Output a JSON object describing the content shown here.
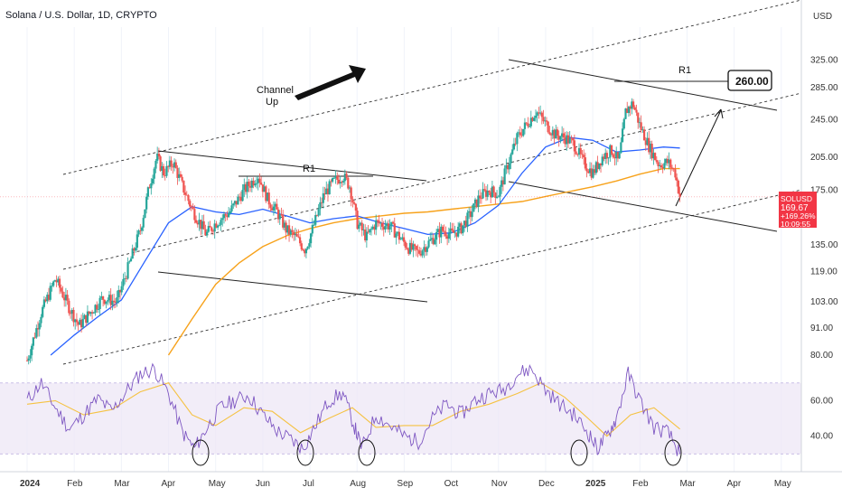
{
  "header": {
    "title": "Solana / U.S. Dollar, 1D, CRYPTO",
    "currency": "USD"
  },
  "price_tag": {
    "symbol": "SOLUSD",
    "price": "169.67",
    "change": "+169.26%",
    "countdown": "10:09:55"
  },
  "annotations": {
    "channel_label_line1": "Channel",
    "channel_label_line2": "Up",
    "r1_left": "R1",
    "r1_right": "R1",
    "target_box": "260.00"
  },
  "colors": {
    "candle_up": "#26a69a",
    "candle_down": "#ef5350",
    "ma_blue": "#2962ff",
    "ma_orange": "#f7a21b",
    "rsi_line": "#7e57c2",
    "rsi_ma": "#f5c242",
    "rsi_band": "#ede7f6",
    "price_tag": "#f23645"
  },
  "chart_data": [
    {
      "type": "candlestick",
      "title": "Solana / U.S. Dollar, 1D, CRYPTO",
      "ylabel": "USD",
      "yscale": "log",
      "ylim": [
        76,
        380
      ],
      "y_ticks": [
        "80.00",
        "91.00",
        "103.00",
        "119.00",
        "135.00",
        "175.00",
        "205.00",
        "245.00",
        "285.00",
        "325.00"
      ],
      "x_ticks": [
        "2024",
        "Feb",
        "Mar",
        "Apr",
        "May",
        "Jun",
        "Jul",
        "Aug",
        "Sep",
        "Oct",
        "Nov",
        "Dec",
        "2025",
        "Feb",
        "Mar",
        "Apr",
        "May"
      ],
      "x_tick_months": [
        0,
        1,
        2,
        3,
        4,
        5,
        6,
        7,
        8,
        9,
        10,
        11,
        12,
        13,
        14,
        15,
        16
      ],
      "x_max_month": 17,
      "last_price": 169.67,
      "price_path": [
        [
          0,
          78
        ],
        [
          0.3,
          98
        ],
        [
          0.6,
          115
        ],
        [
          0.9,
          100
        ],
        [
          1.1,
          92
        ],
        [
          1.3,
          97
        ],
        [
          1.6,
          105
        ],
        [
          1.9,
          103
        ],
        [
          2.2,
          126
        ],
        [
          2.4,
          145
        ],
        [
          2.6,
          180
        ],
        [
          2.75,
          205
        ],
        [
          2.9,
          190
        ],
        [
          3.1,
          200
        ],
        [
          3.3,
          178
        ],
        [
          3.5,
          160
        ],
        [
          3.8,
          142
        ],
        [
          4.0,
          150
        ],
        [
          4.3,
          158
        ],
        [
          4.6,
          175
        ],
        [
          4.9,
          188
        ],
        [
          5.1,
          168
        ],
        [
          5.3,
          158
        ],
        [
          5.5,
          145
        ],
        [
          5.7,
          140
        ],
        [
          5.9,
          132
        ],
        [
          6.1,
          150
        ],
        [
          6.3,
          172
        ],
        [
          6.5,
          182
        ],
        [
          6.7,
          188
        ],
        [
          6.85,
          178
        ],
        [
          7.0,
          150
        ],
        [
          7.2,
          140
        ],
        [
          7.4,
          150
        ],
        [
          7.7,
          148
        ],
        [
          7.9,
          140
        ],
        [
          8.1,
          133
        ],
        [
          8.3,
          130
        ],
        [
          8.5,
          136
        ],
        [
          8.8,
          145
        ],
        [
          9.0,
          142
        ],
        [
          9.2,
          146
        ],
        [
          9.4,
          156
        ],
        [
          9.6,
          170
        ],
        [
          9.8,
          175
        ],
        [
          10.0,
          172
        ],
        [
          10.2,
          198
        ],
        [
          10.4,
          225
        ],
        [
          10.6,
          240
        ],
        [
          10.8,
          255
        ],
        [
          11.0,
          240
        ],
        [
          11.2,
          228
        ],
        [
          11.4,
          225
        ],
        [
          11.6,
          218
        ],
        [
          11.8,
          200
        ],
        [
          12.0,
          190
        ],
        [
          12.2,
          205
        ],
        [
          12.4,
          212
        ],
        [
          12.55,
          200
        ],
        [
          12.7,
          255
        ],
        [
          12.85,
          265
        ],
        [
          13.0,
          238
        ],
        [
          13.2,
          215
        ],
        [
          13.4,
          198
        ],
        [
          13.6,
          200
        ],
        [
          13.75,
          190
        ],
        [
          13.85,
          169.67
        ]
      ],
      "ma_50": [
        [
          0.5,
          80
        ],
        [
          1.0,
          88
        ],
        [
          1.5,
          96
        ],
        [
          2.0,
          104
        ],
        [
          2.5,
          125
        ],
        [
          3.0,
          150
        ],
        [
          3.5,
          162
        ],
        [
          4.0,
          158
        ],
        [
          4.5,
          156
        ],
        [
          5.0,
          160
        ],
        [
          5.5,
          155
        ],
        [
          6.0,
          150
        ],
        [
          6.5,
          153
        ],
        [
          7.0,
          155
        ],
        [
          7.5,
          150
        ],
        [
          8.0,
          146
        ],
        [
          8.5,
          142
        ],
        [
          9.0,
          143
        ],
        [
          9.5,
          150
        ],
        [
          10.0,
          163
        ],
        [
          10.5,
          190
        ],
        [
          11.0,
          215
        ],
        [
          11.5,
          225
        ],
        [
          12.0,
          222
        ],
        [
          12.5,
          210
        ],
        [
          13.0,
          212
        ],
        [
          13.5,
          215
        ],
        [
          13.85,
          214
        ]
      ],
      "ma_200": [
        [
          3.0,
          80
        ],
        [
          3.5,
          95
        ],
        [
          4.0,
          112
        ],
        [
          4.5,
          124
        ],
        [
          5.0,
          134
        ],
        [
          5.5,
          141
        ],
        [
          6.0,
          146
        ],
        [
          6.5,
          150
        ],
        [
          7.0,
          153
        ],
        [
          7.5,
          155
        ],
        [
          8.0,
          157
        ],
        [
          8.5,
          158
        ],
        [
          9.0,
          160
        ],
        [
          9.5,
          162
        ],
        [
          10.0,
          164
        ],
        [
          10.5,
          166
        ],
        [
          11.0,
          170
        ],
        [
          11.5,
          174
        ],
        [
          12.0,
          178
        ],
        [
          12.5,
          183
        ],
        [
          13.0,
          189
        ],
        [
          13.5,
          194
        ],
        [
          13.85,
          194
        ]
      ]
    },
    {
      "type": "line",
      "title": "",
      "ylim": [
        20,
        78
      ],
      "y_ticks": [
        "40.00",
        "60.00"
      ],
      "band": [
        30,
        70
      ],
      "rsi": [
        [
          0.0,
          60
        ],
        [
          0.3,
          70
        ],
        [
          0.6,
          56
        ],
        [
          0.9,
          44
        ],
        [
          1.2,
          52
        ],
        [
          1.5,
          61
        ],
        [
          1.8,
          54
        ],
        [
          2.1,
          65
        ],
        [
          2.4,
          75
        ],
        [
          2.7,
          78
        ],
        [
          3.0,
          64
        ],
        [
          3.3,
          42
        ],
        [
          3.55,
          33
        ],
        [
          3.8,
          44
        ],
        [
          4.1,
          56
        ],
        [
          4.4,
          60
        ],
        [
          4.7,
          63
        ],
        [
          5.0,
          52
        ],
        [
          5.3,
          43
        ],
        [
          5.6,
          38
        ],
        [
          5.85,
          33
        ],
        [
          6.1,
          45
        ],
        [
          6.4,
          60
        ],
        [
          6.7,
          64
        ],
        [
          6.95,
          45
        ],
        [
          7.1,
          33
        ],
        [
          7.4,
          52
        ],
        [
          7.7,
          46
        ],
        [
          8.0,
          40
        ],
        [
          8.3,
          37
        ],
        [
          8.6,
          50
        ],
        [
          8.9,
          58
        ],
        [
          9.2,
          52
        ],
        [
          9.5,
          60
        ],
        [
          9.8,
          64
        ],
        [
          10.1,
          66
        ],
        [
          10.4,
          75
        ],
        [
          10.7,
          78
        ],
        [
          11.0,
          66
        ],
        [
          11.3,
          58
        ],
        [
          11.6,
          52
        ],
        [
          11.9,
          42
        ],
        [
          12.1,
          33
        ],
        [
          12.3,
          40
        ],
        [
          12.5,
          50
        ],
        [
          12.75,
          75
        ],
        [
          13.0,
          60
        ],
        [
          13.3,
          45
        ],
        [
          13.6,
          42
        ],
        [
          13.85,
          30
        ]
      ],
      "rsi_ma": [
        [
          0.0,
          58
        ],
        [
          0.6,
          60
        ],
        [
          1.2,
          52
        ],
        [
          1.8,
          55
        ],
        [
          2.4,
          65
        ],
        [
          3.0,
          70
        ],
        [
          3.5,
          52
        ],
        [
          4.0,
          46
        ],
        [
          4.6,
          56
        ],
        [
          5.2,
          54
        ],
        [
          5.8,
          42
        ],
        [
          6.4,
          50
        ],
        [
          6.9,
          56
        ],
        [
          7.4,
          45
        ],
        [
          8.0,
          46
        ],
        [
          8.6,
          46
        ],
        [
          9.2,
          54
        ],
        [
          9.8,
          58
        ],
        [
          10.4,
          64
        ],
        [
          10.9,
          70
        ],
        [
          11.4,
          62
        ],
        [
          11.9,
          50
        ],
        [
          12.3,
          40
        ],
        [
          12.8,
          52
        ],
        [
          13.3,
          56
        ],
        [
          13.85,
          44
        ]
      ]
    }
  ]
}
